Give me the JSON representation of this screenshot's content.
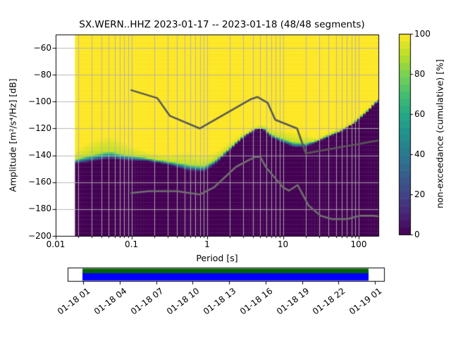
{
  "chart_data": {
    "type": "heatmap",
    "title": "SX.WERN..HHZ   2023-01-17 -- 2023-01-18  (48/48 segments)",
    "station": "SX.WERN..HHZ",
    "date_range": "2023-01-17 -- 2023-01-18",
    "segments": "48/48 segments",
    "xlabel": "Period [s]",
    "ylabel": "Amplitude [m²/s⁴/Hz] [dB]",
    "colorbar_label": "non-exceedance (cumulative) [%]",
    "x_scale": "log",
    "xlim": [
      0.01,
      182
    ],
    "ylim": [
      -200,
      -50
    ],
    "x_ticks": [
      0.01,
      0.1,
      1,
      10,
      100
    ],
    "x_tick_labels": [
      "0.01",
      "0.1",
      "1",
      "10",
      "100"
    ],
    "y_ticks": [
      -60,
      -80,
      -100,
      -120,
      -140,
      -160,
      -180,
      -200
    ],
    "colorbar_ticks": [
      0,
      20,
      40,
      60,
      80,
      100
    ],
    "grid": true,
    "grid_color": "#b0b0b0",
    "period_range": [
      0.018,
      182
    ],
    "colormap": "viridis",
    "colormap_stops": [
      [
        0,
        "#440154"
      ],
      [
        0.1,
        "#482475"
      ],
      [
        0.2,
        "#414487"
      ],
      [
        0.3,
        "#355f8d"
      ],
      [
        0.4,
        "#2a788e"
      ],
      [
        0.5,
        "#21918c"
      ],
      [
        0.6,
        "#22a884"
      ],
      [
        0.7,
        "#44bf70"
      ],
      [
        0.8,
        "#7ad151"
      ],
      [
        0.9,
        "#bddf26"
      ],
      [
        1,
        "#fde725"
      ]
    ],
    "cumulative_boundaries": {
      "description": "per period [s]: dB where non-exceedance leaves 0% (low) and reaches 100% (high)",
      "low": [
        [
          0.018,
          -146
        ],
        [
          0.03,
          -144.5
        ],
        [
          0.05,
          -142.5
        ],
        [
          0.08,
          -143.5
        ],
        [
          0.15,
          -144
        ],
        [
          0.3,
          -146.5
        ],
        [
          0.55,
          -151
        ],
        [
          0.9,
          -152
        ],
        [
          1.3,
          -146
        ],
        [
          2,
          -136
        ],
        [
          3,
          -126.5
        ],
        [
          4.5,
          -120.5
        ],
        [
          5.5,
          -120.5
        ],
        [
          7,
          -126.5
        ],
        [
          10,
          -130.5
        ],
        [
          14,
          -133.8
        ],
        [
          20,
          -133.5
        ],
        [
          28,
          -130
        ],
        [
          40,
          -126
        ],
        [
          60,
          -122
        ],
        [
          90,
          -115.5
        ],
        [
          130,
          -107.5
        ],
        [
          182,
          -99
        ]
      ],
      "high": [
        [
          0.018,
          -137
        ],
        [
          0.025,
          -131
        ],
        [
          0.04,
          -126
        ],
        [
          0.055,
          -125
        ],
        [
          0.08,
          -130
        ],
        [
          0.12,
          -134.5
        ],
        [
          0.2,
          -138
        ],
        [
          0.3,
          -139.5
        ],
        [
          0.5,
          -136.5
        ],
        [
          0.7,
          -138.5
        ],
        [
          1.0,
          -139
        ],
        [
          1.4,
          -136
        ],
        [
          2,
          -130
        ],
        [
          3,
          -123
        ],
        [
          4.5,
          -117.5
        ],
        [
          5.5,
          -116.5
        ],
        [
          7,
          -119.5
        ],
        [
          10,
          -121
        ],
        [
          14,
          -122.5
        ],
        [
          20,
          -124.5
        ],
        [
          28,
          -126.5
        ],
        [
          40,
          -122.5
        ],
        [
          60,
          -119
        ],
        [
          90,
          -112.5
        ],
        [
          130,
          -104.5
        ],
        [
          182,
          -96.5
        ]
      ]
    },
    "noise_models": {
      "nhnm_color": "#585858",
      "nlnm_color": "#6f6f6f",
      "nhnm": [
        [
          0.1,
          -91.5
        ],
        [
          0.22,
          -97.4
        ],
        [
          0.32,
          -110.5
        ],
        [
          0.8,
          -120
        ],
        [
          3.8,
          -98.1
        ],
        [
          4.6,
          -96.5
        ],
        [
          6.3,
          -101
        ],
        [
          7.9,
          -113.5
        ],
        [
          15.4,
          -120
        ],
        [
          20,
          -138.5
        ],
        [
          182,
          -128.9
        ]
      ],
      "nlnm": [
        [
          0.1,
          -168
        ],
        [
          0.17,
          -166.7
        ],
        [
          0.4,
          -166.7
        ],
        [
          0.8,
          -169.2
        ],
        [
          1.24,
          -163.7
        ],
        [
          2.4,
          -148.6
        ],
        [
          4.3,
          -141.1
        ],
        [
          5,
          -141.1
        ],
        [
          6,
          -149
        ],
        [
          10,
          -163.8
        ],
        [
          12,
          -166.3
        ],
        [
          15.6,
          -162.1
        ],
        [
          21.9,
          -177.5
        ],
        [
          31.6,
          -185
        ],
        [
          45,
          -187.5
        ],
        [
          70,
          -187.5
        ],
        [
          101,
          -185
        ],
        [
          154,
          -185
        ],
        [
          182,
          -185.4
        ]
      ]
    },
    "timeline": {
      "tick_labels": [
        "01-18 01",
        "01-18 04",
        "01-18 07",
        "01-18 10",
        "01-18 13",
        "01-18 16",
        "01-18 19",
        "01-18 22",
        "01-19 01"
      ],
      "bar_border": "#000000",
      "coverage_top_color": "#006400",
      "coverage_color": "#0000ff"
    }
  }
}
